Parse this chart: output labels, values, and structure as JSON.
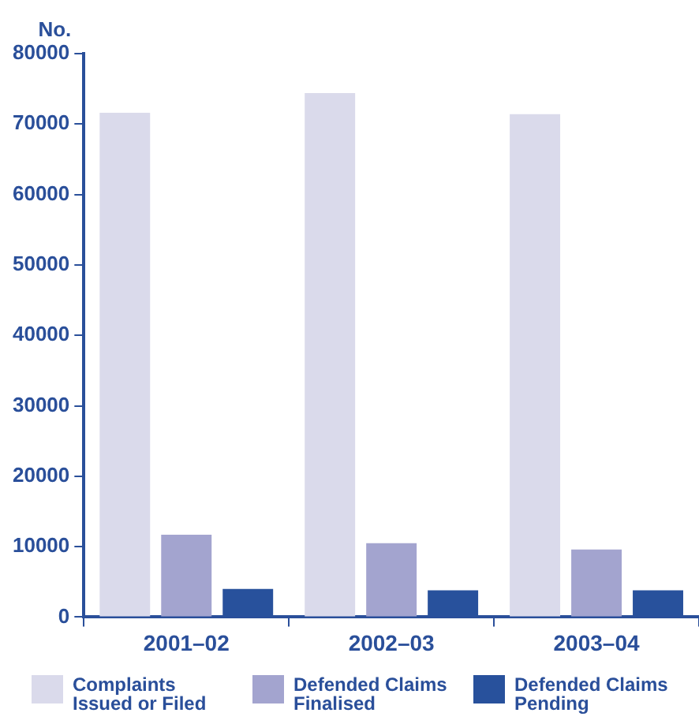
{
  "chart_data": {
    "type": "bar",
    "ylabel": "No.",
    "categories": [
      "2001–02",
      "2002–03",
      "2003–04"
    ],
    "series": [
      {
        "name": "Complaints Issued or Filed",
        "color": "#dadaeb",
        "values": [
          71600,
          74400,
          71400
        ]
      },
      {
        "name": "Defended Claims Finalised",
        "color": "#a3a4cf",
        "values": [
          11700,
          10500,
          9600
        ]
      },
      {
        "name": "Defended Claims Pending",
        "color": "#28519c",
        "values": [
          4000,
          3800,
          3800
        ]
      }
    ],
    "ylim": [
      0,
      80000
    ],
    "yticks": [
      0,
      10000,
      20000,
      30000,
      40000,
      50000,
      60000,
      70000,
      80000
    ],
    "grid": false,
    "legend": "bottom"
  }
}
